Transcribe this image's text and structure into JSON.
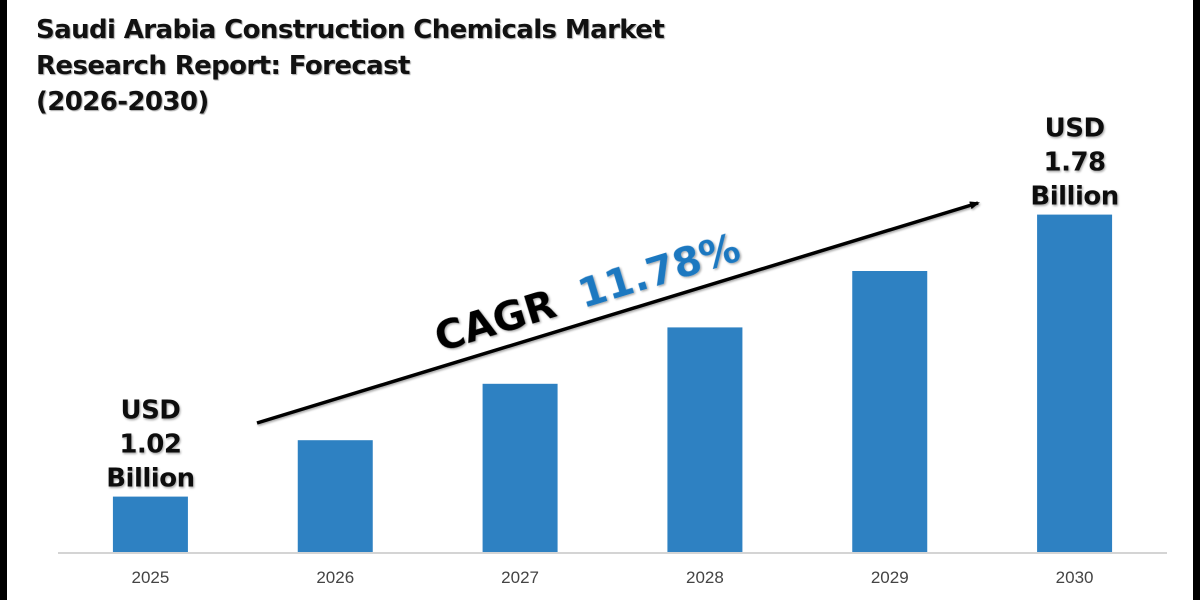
{
  "title_lines": [
    "Saudi Arabia Construction Chemicals Market",
    "Research Report: Forecast",
    "(2026-2030)"
  ],
  "colors": {
    "bar": "#2e81c2",
    "axis": "#d4d4d4",
    "cagr_value": "#1f78c0",
    "text": "#111111"
  },
  "chart_data": {
    "type": "bar",
    "title": "Saudi Arabia Construction Chemicals Market Research Report: Forecast (2026-2030)",
    "xlabel": "",
    "ylabel": "",
    "categories": [
      "2025",
      "2026",
      "2027",
      "2028",
      "2029",
      "2030"
    ],
    "relative_bar_heights": [
      1,
      2,
      3,
      4,
      5,
      6
    ],
    "labeled_values": [
      {
        "category": "2025",
        "value": 1.02,
        "unit": "USD Billion",
        "lines": [
          "USD",
          "1.02",
          "Billion"
        ]
      },
      {
        "category": "2030",
        "value": 1.78,
        "unit": "USD Billion",
        "lines": [
          "USD",
          "1.78",
          "Billion"
        ]
      }
    ],
    "annotation": {
      "prefix": "CAGR",
      "value": "11.78%"
    },
    "grid": false,
    "legend": "none"
  }
}
